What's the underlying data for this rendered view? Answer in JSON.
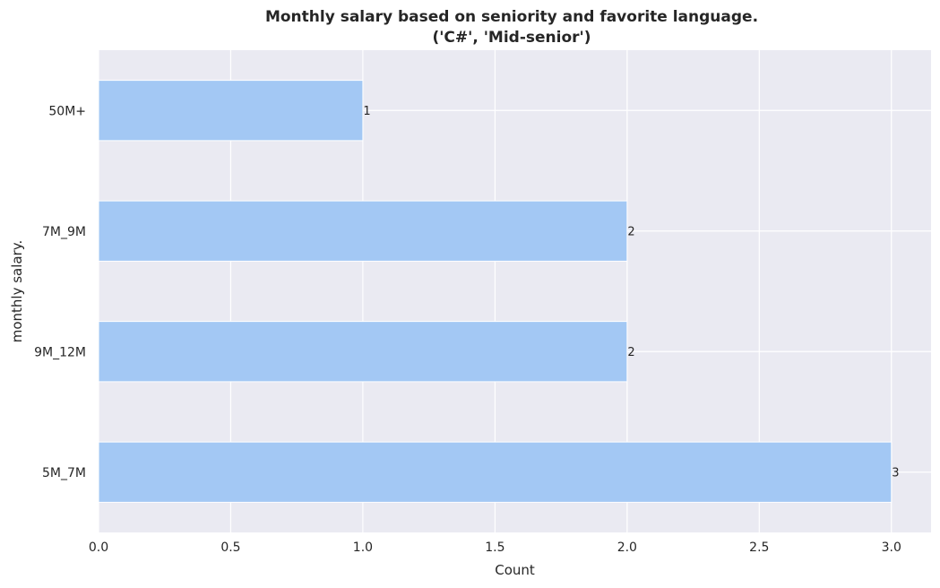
{
  "chart_data": {
    "type": "bar",
    "orientation": "horizontal",
    "title": "Monthly salary based on seniority and favorite language.",
    "subtitle": "('C#', 'Mid-senior')",
    "xlabel": "Count",
    "ylabel": "monthly salary.",
    "categories": [
      "50M+",
      "7M_9M",
      "9M_12M",
      "5M_7M"
    ],
    "values": [
      1,
      2,
      2,
      3
    ],
    "data_labels": [
      "1",
      "2",
      "2",
      "3"
    ],
    "xlim": [
      0,
      3.15
    ],
    "xticks": [
      0.0,
      0.5,
      1.0,
      1.5,
      2.0,
      2.5,
      3.0
    ],
    "xtick_labels": [
      "0.0",
      "0.5",
      "1.0",
      "1.5",
      "2.0",
      "2.5",
      "3.0"
    ],
    "grid": true,
    "colors": {
      "bar": "#a3c8f4",
      "plot_background": "#eaeaf2",
      "grid": "#ffffff"
    }
  }
}
